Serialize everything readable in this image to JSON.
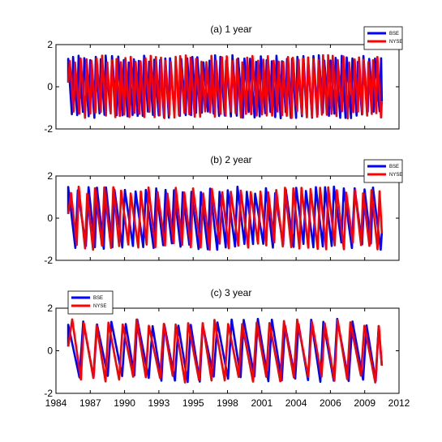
{
  "chart_data": [
    {
      "type": "line",
      "title": "(a) 1 year",
      "xlabel": "",
      "ylabel": "",
      "xlim": [
        1984,
        2012
      ],
      "ylim": [
        -2,
        2
      ],
      "xtick_labels": [],
      "ytick_labels": [
        "2",
        "0",
        "-2"
      ],
      "legend_position": "top-right",
      "x_range": [
        1985,
        2010.6
      ],
      "series": [
        {
          "name": "BSE",
          "color": "#0000ff",
          "period_years": 0.45,
          "amplitude": [
            -1.5,
            1.5
          ]
        },
        {
          "name": "NYSE",
          "color": "#ff0000",
          "period_years": 0.42,
          "amplitude": [
            -1.5,
            1.5
          ]
        }
      ]
    },
    {
      "type": "line",
      "title": "(b) 2 year",
      "xlabel": "",
      "ylabel": "",
      "xlim": [
        1984,
        2012
      ],
      "ylim": [
        -2,
        2
      ],
      "xtick_labels": [],
      "ytick_labels": [
        "2",
        "0",
        "-2"
      ],
      "legend_position": "top-right",
      "x_range": [
        1985,
        2010.6
      ],
      "series": [
        {
          "name": "BSE",
          "color": "#0000ff",
          "period_years": 0.78,
          "amplitude": [
            -1.5,
            1.5
          ]
        },
        {
          "name": "NYSE",
          "color": "#ff0000",
          "period_years": 0.74,
          "amplitude": [
            -1.5,
            1.5
          ]
        }
      ]
    },
    {
      "type": "line",
      "title": "(c) 3 year",
      "xlabel": "",
      "ylabel": "",
      "xlim": [
        1984,
        2012
      ],
      "ylim": [
        -2,
        2
      ],
      "xtick_labels": [
        "1984",
        "1987",
        "1990",
        "1993",
        "1995",
        "1998",
        "2001",
        "2004",
        "2006",
        "2009",
        "2012"
      ],
      "ytick_labels": [
        "2",
        "0",
        "-2"
      ],
      "legend_position": "top-left",
      "x_range": [
        1985,
        2010.6
      ],
      "series": [
        {
          "name": "BSE",
          "color": "#0000ff",
          "period_years": 1.1,
          "amplitude": [
            -1.5,
            1.5
          ]
        },
        {
          "name": "NYSE",
          "color": "#ff0000",
          "period_years": 1.07,
          "amplitude": [
            -1.5,
            1.5
          ]
        }
      ]
    }
  ]
}
